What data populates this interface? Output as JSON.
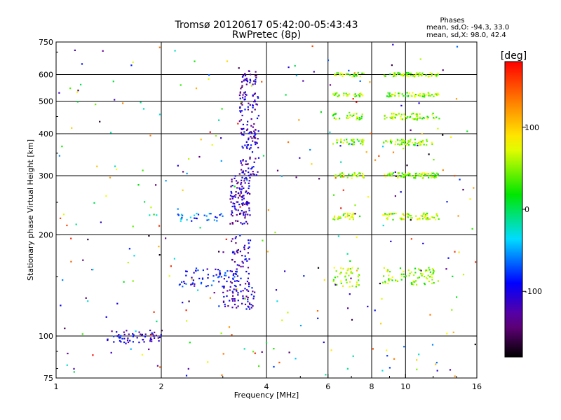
{
  "chart_data": {
    "type": "scatter",
    "title": "Tromsø 20120617 05:42:00-05:43:43",
    "subtitle": "RwPretec (8p)",
    "xlabel": "Frequency [MHz]",
    "ylabel": "Stationary phase Virtual Height [km]",
    "xscale": "log",
    "yscale": "log",
    "xlim": [
      1,
      16
    ],
    "ylim": [
      75,
      750
    ],
    "x_ticks": [
      "1",
      "2",
      "4",
      "6",
      "8",
      "10",
      "16"
    ],
    "y_ticks": [
      "75",
      "100",
      "200",
      "300",
      "400",
      "500",
      "600",
      "750"
    ],
    "grid": true,
    "legend": {
      "title": "Phases",
      "lines": [
        "mean, sd,O: -94.3, 33.0",
        "mean, sd,X:  98.0, 42.4"
      ]
    },
    "colorbar": {
      "label": "[deg]",
      "range": [
        -180,
        180
      ],
      "ticks": [
        "100",
        "0",
        "-100"
      ],
      "colormap": "rainbow"
    },
    "clusters": [
      {
        "x": [
          1.4,
          2.0
        ],
        "y": [
          95,
          104
        ],
        "n": 60,
        "phase": -110
      },
      {
        "x": [
          2.25,
          3.3
        ],
        "y": [
          140,
          160
        ],
        "n": 70,
        "phase": -90
      },
      {
        "x": [
          3.0,
          3.7
        ],
        "y": [
          120,
          140
        ],
        "n": 60,
        "phase": -110
      },
      {
        "x": [
          3.15,
          3.6
        ],
        "y": [
          140,
          200
        ],
        "n": 60,
        "phase": -115
      },
      {
        "x": [
          3.15,
          3.6
        ],
        "y": [
          215,
          300
        ],
        "n": 110,
        "phase": -115
      },
      {
        "x": [
          3.35,
          3.8
        ],
        "y": [
          300,
          620
        ],
        "n": 170,
        "phase": -115
      },
      {
        "x": [
          2.2,
          3.0
        ],
        "y": [
          220,
          232
        ],
        "n": 30,
        "phase": -60
      },
      {
        "x": [
          6.2,
          7.4
        ],
        "y": [
          140,
          160
        ],
        "n": 45,
        "phase": 60
      },
      {
        "x": [
          8.6,
          12.5
        ],
        "y": [
          142,
          160
        ],
        "n": 80,
        "phase": 50
      },
      {
        "x": [
          6.2,
          7.4
        ],
        "y": [
          222,
          232
        ],
        "n": 30,
        "phase": 60
      },
      {
        "x": [
          8.6,
          12.5
        ],
        "y": [
          222,
          232
        ],
        "n": 70,
        "phase": 60
      },
      {
        "x": [
          6.2,
          7.6
        ],
        "y": [
          295,
          306
        ],
        "n": 35,
        "phase": 50
      },
      {
        "x": [
          8.6,
          12.5
        ],
        "y": [
          295,
          306
        ],
        "n": 80,
        "phase": 50
      },
      {
        "x": [
          6.2,
          7.6
        ],
        "y": [
          370,
          385
        ],
        "n": 35,
        "phase": 50
      },
      {
        "x": [
          8.6,
          12.0
        ],
        "y": [
          370,
          385
        ],
        "n": 60,
        "phase": 50
      },
      {
        "x": [
          6.2,
          7.6
        ],
        "y": [
          440,
          460
        ],
        "n": 30,
        "phase": 50
      },
      {
        "x": [
          8.6,
          12.5
        ],
        "y": [
          440,
          460
        ],
        "n": 60,
        "phase": 50
      },
      {
        "x": [
          6.2,
          7.6
        ],
        "y": [
          515,
          530
        ],
        "n": 30,
        "phase": 50
      },
      {
        "x": [
          8.6,
          12.5
        ],
        "y": [
          515,
          530
        ],
        "n": 60,
        "phase": 50
      },
      {
        "x": [
          6.2,
          7.6
        ],
        "y": [
          592,
          608
        ],
        "n": 25,
        "phase": 50
      },
      {
        "x": [
          8.6,
          12.5
        ],
        "y": [
          592,
          608
        ],
        "n": 60,
        "phase": 50
      },
      {
        "x": [
          1.0,
          16.0
        ],
        "y": [
          75,
          750
        ],
        "n": 320,
        "phase": 0
      }
    ]
  }
}
